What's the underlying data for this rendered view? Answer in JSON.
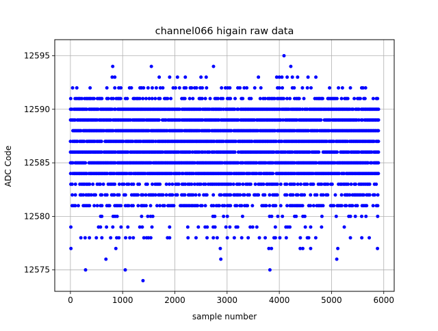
{
  "chart_data": {
    "type": "scatter",
    "title": "channel066 higain raw data",
    "xlabel": "sample number",
    "ylabel": "ADC Code",
    "xlim": [
      -300,
      6200
    ],
    "ylim": [
      12573,
      12596.5
    ],
    "xticks": [
      0,
      1000,
      2000,
      3000,
      4000,
      5000,
      6000
    ],
    "yticks": [
      12575,
      12580,
      12585,
      12590,
      12595
    ],
    "grid": true,
    "marker_color": "#0000ff",
    "x_extent": [
      0,
      5900
    ],
    "dense_codes": [
      12584,
      12585,
      12586,
      12587,
      12588,
      12589,
      12590
    ],
    "medium_codes": [
      12581,
      12582,
      12583,
      12591
    ],
    "sparse_codes": [
      12578,
      12579,
      12580,
      12592
    ],
    "rare_points": [
      {
        "x": 10,
        "y": 12577
      },
      {
        "x": 290,
        "y": 12575
      },
      {
        "x": 1050,
        "y": 12575
      },
      {
        "x": 1390,
        "y": 12574
      },
      {
        "x": 3820,
        "y": 12575
      },
      {
        "x": 680,
        "y": 12576
      },
      {
        "x": 2880,
        "y": 12576
      },
      {
        "x": 5100,
        "y": 12576
      },
      {
        "x": 870,
        "y": 12577
      },
      {
        "x": 2870,
        "y": 12577
      },
      {
        "x": 3800,
        "y": 12577
      },
      {
        "x": 3850,
        "y": 12577
      },
      {
        "x": 4400,
        "y": 12577
      },
      {
        "x": 4450,
        "y": 12577
      },
      {
        "x": 4600,
        "y": 12577
      },
      {
        "x": 5120,
        "y": 12577
      },
      {
        "x": 5880,
        "y": 12577
      },
      {
        "x": 800,
        "y": 12593
      },
      {
        "x": 850,
        "y": 12593
      },
      {
        "x": 1700,
        "y": 12593
      },
      {
        "x": 1900,
        "y": 12593
      },
      {
        "x": 2050,
        "y": 12593
      },
      {
        "x": 2200,
        "y": 12593
      },
      {
        "x": 2500,
        "y": 12593
      },
      {
        "x": 2600,
        "y": 12593
      },
      {
        "x": 3600,
        "y": 12593
      },
      {
        "x": 3950,
        "y": 12593
      },
      {
        "x": 4000,
        "y": 12593
      },
      {
        "x": 4050,
        "y": 12593
      },
      {
        "x": 4150,
        "y": 12593
      },
      {
        "x": 4250,
        "y": 12593
      },
      {
        "x": 4350,
        "y": 12593
      },
      {
        "x": 4550,
        "y": 12593
      },
      {
        "x": 4700,
        "y": 12593
      },
      {
        "x": 810,
        "y": 12594
      },
      {
        "x": 1550,
        "y": 12594
      },
      {
        "x": 2740,
        "y": 12594
      },
      {
        "x": 4220,
        "y": 12594
      },
      {
        "x": 4090,
        "y": 12595
      }
    ]
  }
}
